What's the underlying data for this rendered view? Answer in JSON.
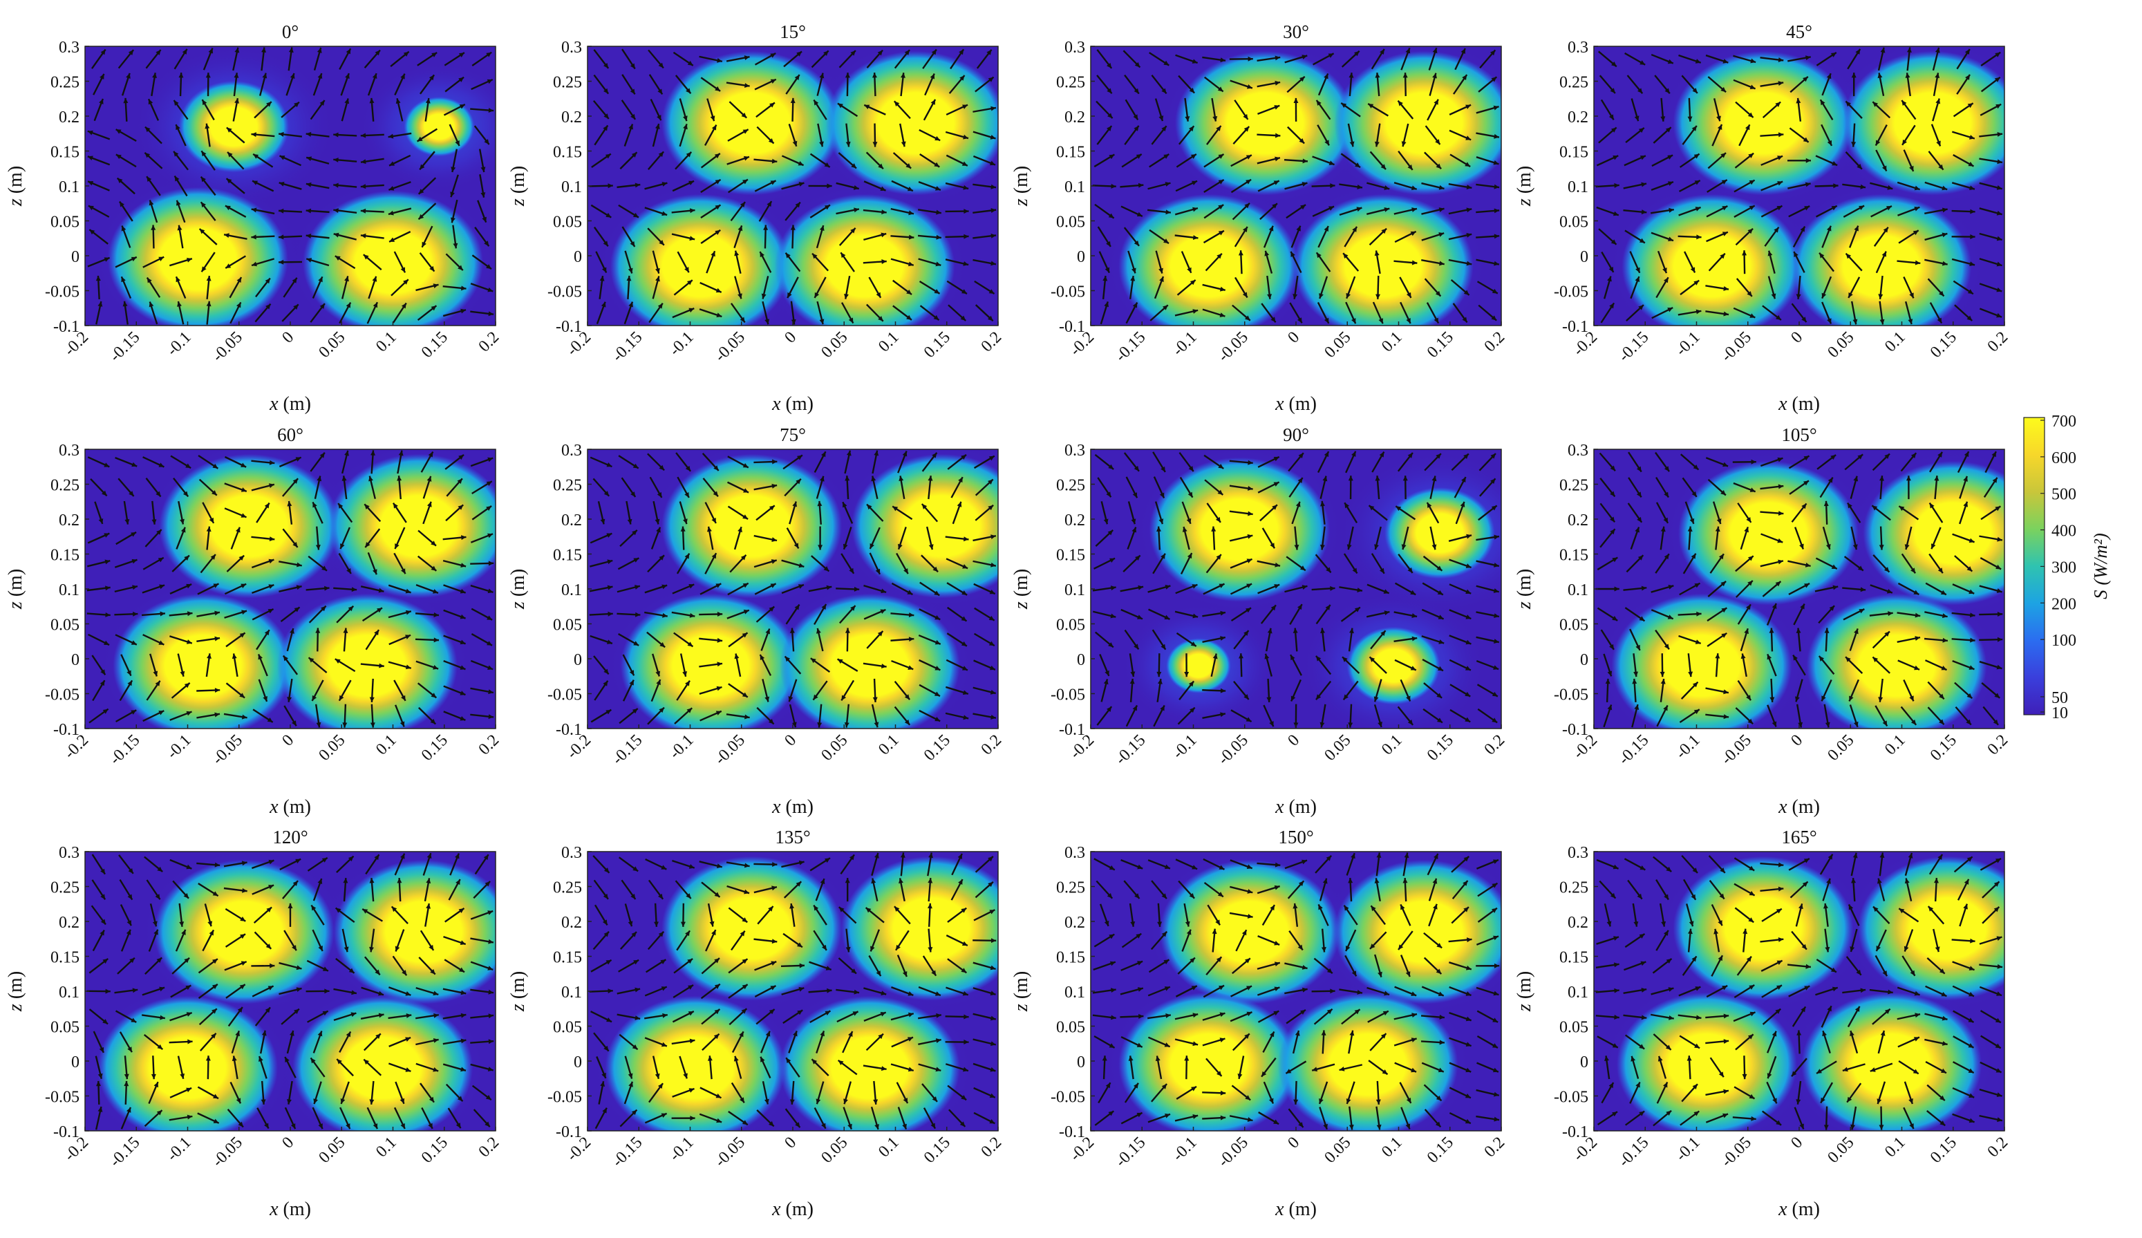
{
  "figure": {
    "colorbar": {
      "label": "S (W/m²)",
      "label_symbol": "S",
      "label_unit": "(W/m²)",
      "ticks": [
        700,
        600,
        500,
        400,
        300,
        200,
        100,
        50,
        10
      ],
      "colormap": [
        "#3f1fb8",
        "#3a3fdc",
        "#2b6df0",
        "#1da3e3",
        "#2fc3b0",
        "#7bd25e",
        "#c9c63a",
        "#f7d72a",
        "#fdfb1c"
      ]
    }
  },
  "chart_data": [
    {
      "type": "heatmap",
      "title": "0°",
      "xlabel": "x (m)",
      "ylabel": "z (m)",
      "xlim": [
        -0.2,
        0.2
      ],
      "ylim": [
        -0.1,
        0.3
      ],
      "x_ticks": [
        "-0.2",
        "-0.15",
        "-0.1",
        "-0.05",
        "0",
        "0.05",
        "0.1",
        "0.15",
        "0.2"
      ],
      "y_ticks": [
        "0.3",
        "0.25",
        "0.2",
        "0.15",
        "0.1",
        "0.05",
        "0",
        "-0.05",
        "-0.1"
      ],
      "hotspots": [
        {
          "x": -0.09,
          "z": -0.005,
          "peak": 700
        },
        {
          "x": -0.055,
          "z": 0.185,
          "peak": 650
        },
        {
          "x": 0.1,
          "z": -0.01,
          "peak": 700
        },
        {
          "x": 0.145,
          "z": 0.185,
          "peak": 300
        }
      ]
    },
    {
      "type": "heatmap",
      "title": "15°",
      "xlabel": "x (m)",
      "ylabel": "z (m)",
      "xlim": [
        -0.2,
        0.2
      ],
      "ylim": [
        -0.1,
        0.3
      ],
      "x_ticks": [
        "-0.2",
        "-0.15",
        "-0.1",
        "-0.05",
        "0",
        "0.05",
        "0.1",
        "0.15",
        "0.2"
      ],
      "y_ticks": [
        "0.3",
        "0.25",
        "0.2",
        "0.15",
        "0.1",
        "0.05",
        "0",
        "-0.05",
        "-0.1"
      ],
      "hotspots": [
        {
          "x": -0.04,
          "z": 0.19,
          "peak": 700
        },
        {
          "x": 0.12,
          "z": 0.19,
          "peak": 700
        },
        {
          "x": -0.09,
          "z": -0.015,
          "peak": 700
        },
        {
          "x": 0.07,
          "z": -0.015,
          "peak": 700
        }
      ]
    },
    {
      "type": "heatmap",
      "title": "30°",
      "xlabel": "x (m)",
      "ylabel": "z (m)",
      "xlim": [
        -0.2,
        0.2
      ],
      "ylim": [
        -0.1,
        0.3
      ],
      "x_ticks": [
        "-0.2",
        "-0.15",
        "-0.1",
        "-0.05",
        "0",
        "0.05",
        "0.1",
        "0.15",
        "0.2"
      ],
      "y_ticks": [
        "0.3",
        "0.25",
        "0.2",
        "0.15",
        "0.1",
        "0.05",
        "0",
        "-0.05",
        "-0.1"
      ],
      "hotspots": [
        {
          "x": -0.03,
          "z": 0.19,
          "peak": 700
        },
        {
          "x": 0.125,
          "z": 0.19,
          "peak": 700
        },
        {
          "x": -0.085,
          "z": -0.015,
          "peak": 700
        },
        {
          "x": 0.085,
          "z": -0.015,
          "peak": 700
        }
      ]
    },
    {
      "type": "heatmap",
      "title": "45°",
      "xlabel": "x (m)",
      "ylabel": "z (m)",
      "xlim": [
        -0.2,
        0.2
      ],
      "ylim": [
        -0.1,
        0.3
      ],
      "x_ticks": [
        "-0.2",
        "-0.15",
        "-0.1",
        "-0.05",
        "0",
        "0.05",
        "0.1",
        "0.15",
        "0.2"
      ],
      "y_ticks": [
        "0.3",
        "0.25",
        "0.2",
        "0.15",
        "0.1",
        "0.05",
        "0",
        "-0.05",
        "-0.1"
      ],
      "hotspots": [
        {
          "x": -0.035,
          "z": 0.19,
          "peak": 700
        },
        {
          "x": 0.13,
          "z": 0.19,
          "peak": 700
        },
        {
          "x": -0.085,
          "z": -0.015,
          "peak": 700
        },
        {
          "x": 0.08,
          "z": -0.015,
          "peak": 700
        }
      ]
    },
    {
      "type": "heatmap",
      "title": "60°",
      "xlabel": "x (m)",
      "ylabel": "z (m)",
      "xlim": [
        -0.2,
        0.2
      ],
      "ylim": [
        -0.1,
        0.3
      ],
      "x_ticks": [
        "-0.2",
        "-0.15",
        "-0.1",
        "-0.05",
        "0",
        "0.05",
        "0.1",
        "0.15",
        "0.2"
      ],
      "y_ticks": [
        "0.3",
        "0.25",
        "0.2",
        "0.15",
        "0.1",
        "0.05",
        "0",
        "-0.05",
        "-0.1"
      ],
      "hotspots": [
        {
          "x": -0.04,
          "z": 0.19,
          "peak": 700
        },
        {
          "x": 0.125,
          "z": 0.19,
          "peak": 700
        },
        {
          "x": -0.085,
          "z": -0.01,
          "peak": 700
        },
        {
          "x": 0.075,
          "z": -0.01,
          "peak": 700
        }
      ]
    },
    {
      "type": "heatmap",
      "title": "75°",
      "xlabel": "x (m)",
      "ylabel": "z (m)",
      "xlim": [
        -0.2,
        0.2
      ],
      "ylim": [
        -0.1,
        0.3
      ],
      "x_ticks": [
        "-0.2",
        "-0.15",
        "-0.1",
        "-0.05",
        "0",
        "0.05",
        "0.1",
        "0.15",
        "0.2"
      ],
      "y_ticks": [
        "0.3",
        "0.25",
        "0.2",
        "0.15",
        "0.1",
        "0.05",
        "0",
        "-0.05",
        "-0.1"
      ],
      "hotspots": [
        {
          "x": -0.04,
          "z": 0.19,
          "peak": 700
        },
        {
          "x": 0.145,
          "z": 0.19,
          "peak": 700
        },
        {
          "x": -0.08,
          "z": -0.01,
          "peak": 700
        },
        {
          "x": 0.075,
          "z": -0.01,
          "peak": 700
        }
      ]
    },
    {
      "type": "heatmap",
      "title": "90°",
      "xlabel": "x (m)",
      "ylabel": "z (m)",
      "xlim": [
        -0.2,
        0.2
      ],
      "ylim": [
        -0.1,
        0.3
      ],
      "x_ticks": [
        "-0.2",
        "-0.15",
        "-0.1",
        "-0.05",
        "0",
        "0.05",
        "0.1",
        "0.15",
        "0.2"
      ],
      "y_ticks": [
        "0.3",
        "0.25",
        "0.2",
        "0.15",
        "0.1",
        "0.05",
        "0",
        "-0.05",
        "-0.1"
      ],
      "hotspots": [
        {
          "x": -0.055,
          "z": 0.185,
          "peak": 700
        },
        {
          "x": 0.14,
          "z": 0.18,
          "peak": 650
        },
        {
          "x": -0.095,
          "z": -0.01,
          "peak": 250
        },
        {
          "x": 0.095,
          "z": -0.01,
          "peak": 500
        }
      ]
    },
    {
      "type": "heatmap",
      "title": "105°",
      "xlabel": "x (m)",
      "ylabel": "z (m)",
      "xlim": [
        -0.2,
        0.2
      ],
      "ylim": [
        -0.1,
        0.3
      ],
      "x_ticks": [
        "-0.2",
        "-0.15",
        "-0.1",
        "-0.05",
        "0",
        "0.05",
        "0.1",
        "0.15",
        "0.2"
      ],
      "y_ticks": [
        "0.3",
        "0.25",
        "0.2",
        "0.15",
        "0.1",
        "0.05",
        "0",
        "-0.05",
        "-0.1"
      ],
      "hotspots": [
        {
          "x": -0.03,
          "z": 0.18,
          "peak": 700
        },
        {
          "x": 0.15,
          "z": 0.18,
          "peak": 700
        },
        {
          "x": -0.095,
          "z": -0.01,
          "peak": 700
        },
        {
          "x": 0.095,
          "z": -0.01,
          "peak": 700
        }
      ]
    },
    {
      "type": "heatmap",
      "title": "120°",
      "xlabel": "x (m)",
      "ylabel": "z (m)",
      "xlim": [
        -0.2,
        0.2
      ],
      "ylim": [
        -0.1,
        0.3
      ],
      "x_ticks": [
        "-0.2",
        "-0.15",
        "-0.1",
        "-0.05",
        "0",
        "0.05",
        "0.1",
        "0.15",
        "0.2"
      ],
      "y_ticks": [
        "0.3",
        "0.25",
        "0.2",
        "0.15",
        "0.1",
        "0.05",
        "0",
        "-0.05",
        "-0.1"
      ],
      "hotspots": [
        {
          "x": -0.045,
          "z": 0.185,
          "peak": 700
        },
        {
          "x": 0.13,
          "z": 0.185,
          "peak": 700
        },
        {
          "x": -0.1,
          "z": -0.01,
          "peak": 700
        },
        {
          "x": 0.09,
          "z": -0.01,
          "peak": 700
        }
      ]
    },
    {
      "type": "heatmap",
      "title": "135°",
      "xlabel": "x (m)",
      "ylabel": "z (m)",
      "xlim": [
        -0.2,
        0.2
      ],
      "ylim": [
        -0.1,
        0.3
      ],
      "x_ticks": [
        "-0.2",
        "-0.15",
        "-0.1",
        "-0.05",
        "0",
        "0.05",
        "0.1",
        "0.15",
        "0.2"
      ],
      "y_ticks": [
        "0.3",
        "0.25",
        "0.2",
        "0.15",
        "0.1",
        "0.05",
        "0",
        "-0.05",
        "-0.1"
      ],
      "hotspots": [
        {
          "x": -0.04,
          "z": 0.19,
          "peak": 700
        },
        {
          "x": 0.135,
          "z": 0.19,
          "peak": 700
        },
        {
          "x": -0.095,
          "z": -0.01,
          "peak": 700
        },
        {
          "x": 0.075,
          "z": -0.01,
          "peak": 700
        }
      ]
    },
    {
      "type": "heatmap",
      "title": "150°",
      "xlabel": "x (m)",
      "ylabel": "z (m)",
      "xlim": [
        -0.2,
        0.2
      ],
      "ylim": [
        -0.1,
        0.3
      ],
      "x_ticks": [
        "-0.2",
        "-0.15",
        "-0.1",
        "-0.05",
        "0",
        "0.05",
        "0.1",
        "0.15",
        "0.2"
      ],
      "y_ticks": [
        "0.3",
        "0.25",
        "0.2",
        "0.15",
        "0.1",
        "0.05",
        "0",
        "-0.05",
        "-0.1"
      ],
      "hotspots": [
        {
          "x": -0.045,
          "z": 0.185,
          "peak": 700
        },
        {
          "x": 0.125,
          "z": 0.185,
          "peak": 700
        },
        {
          "x": -0.085,
          "z": -0.005,
          "peak": 700
        },
        {
          "x": 0.07,
          "z": -0.005,
          "peak": 700
        }
      ]
    },
    {
      "type": "heatmap",
      "title": "165°",
      "xlabel": "x (m)",
      "ylabel": "z (m)",
      "xlim": [
        -0.2,
        0.2
      ],
      "ylim": [
        -0.1,
        0.3
      ],
      "x_ticks": [
        "-0.2",
        "-0.15",
        "-0.1",
        "-0.05",
        "0",
        "0.05",
        "0.1",
        "0.15",
        "0.2"
      ],
      "y_ticks": [
        "0.3",
        "0.25",
        "0.2",
        "0.15",
        "0.1",
        "0.05",
        "0",
        "-0.05",
        "-0.1"
      ],
      "hotspots": [
        {
          "x": -0.035,
          "z": 0.19,
          "peak": 700
        },
        {
          "x": 0.145,
          "z": 0.19,
          "peak": 700
        },
        {
          "x": -0.09,
          "z": -0.005,
          "peak": 700
        },
        {
          "x": 0.09,
          "z": -0.005,
          "peak": 700
        }
      ]
    }
  ]
}
